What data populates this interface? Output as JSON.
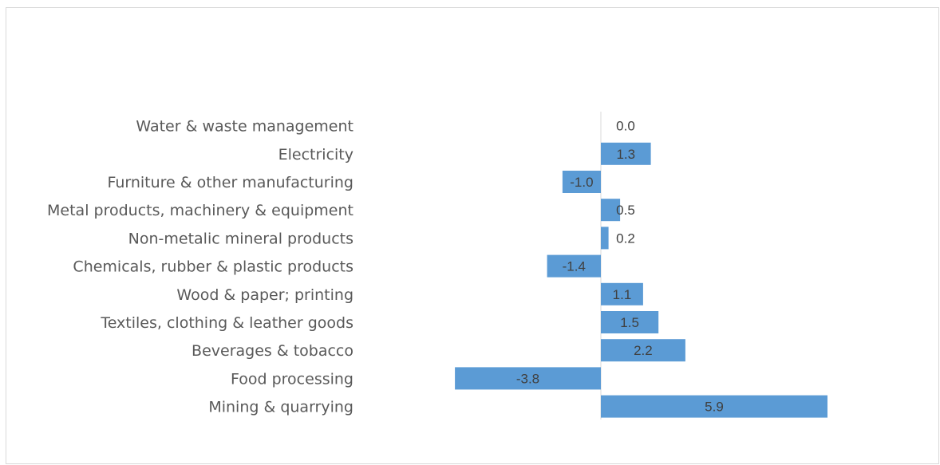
{
  "chart_data": {
    "type": "bar",
    "orientation": "horizontal",
    "categories": [
      "Water & waste management",
      "Electricity",
      "Furniture & other manufacturing ",
      "Metal products, machinery & equipment",
      "Non-metalic mineral products",
      "Chemicals, rubber & plastic products",
      "Wood & paper; printing",
      "Textiles, clothing & leather goods",
      "Beverages & tobacco",
      "Food processing",
      "Mining & quarrying"
    ],
    "values": [
      0.0,
      1.3,
      -1.0,
      0.5,
      0.2,
      -1.4,
      1.1,
      1.5,
      2.2,
      -3.8,
      5.9
    ],
    "data_labels": [
      "0.0",
      "1.3",
      "-1.0",
      "0.5",
      "0.2",
      "-1.4",
      "1.1",
      "1.5",
      "2.2",
      "-3.8",
      "5.9"
    ],
    "title": "",
    "xlabel": "",
    "ylabel": "",
    "xlim": [
      -3.8,
      5.9
    ],
    "grid": false,
    "legend": "none",
    "colors": {
      "bar": "#5b9bd5",
      "axis": "#d9d9d9",
      "label": "#595959",
      "value": "#404040"
    }
  }
}
